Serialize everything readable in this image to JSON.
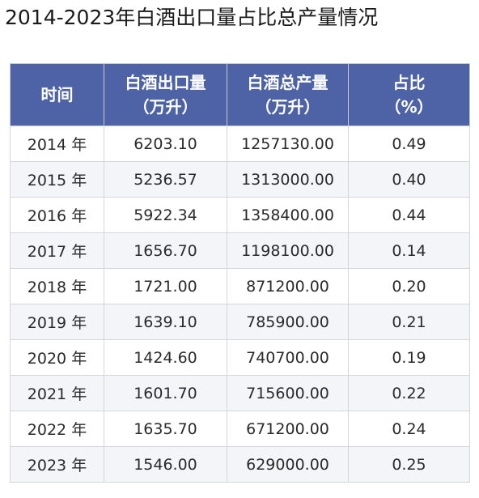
{
  "title": "2014-2023年白酒出口量占比总产量情况",
  "table": {
    "headers": [
      {
        "line1": "时间",
        "line2": ""
      },
      {
        "line1": "白酒出口量",
        "line2": "（万升）"
      },
      {
        "line1": "白酒总产量",
        "line2": "（万升）"
      },
      {
        "line1": "占比",
        "line2": "（%）"
      }
    ],
    "rows": [
      {
        "year": "2014 年",
        "export": "6203.10",
        "production": "1257130.00",
        "ratio": "0.49"
      },
      {
        "year": "2015 年",
        "export": "5236.57",
        "production": "1313000.00",
        "ratio": "0.40"
      },
      {
        "year": "2016 年",
        "export": "5922.34",
        "production": "1358400.00",
        "ratio": "0.44"
      },
      {
        "year": "2017 年",
        "export": "1656.70",
        "production": "1198100.00",
        "ratio": "0.14"
      },
      {
        "year": "2018 年",
        "export": "1721.00",
        "production": "871200.00",
        "ratio": "0.20"
      },
      {
        "year": "2019 年",
        "export": "1639.10",
        "production": "785900.00",
        "ratio": "0.21"
      },
      {
        "year": "2020 年",
        "export": "1424.60",
        "production": "740700.00",
        "ratio": "0.19"
      },
      {
        "year": "2021 年",
        "export": "1601.70",
        "production": "715600.00",
        "ratio": "0.22"
      },
      {
        "year": "2022 年",
        "export": "1635.70",
        "production": "671200.00",
        "ratio": "0.24"
      },
      {
        "year": "2023 年",
        "export": "1546.00",
        "production": "629000.00",
        "ratio": "0.25"
      }
    ]
  },
  "colors": {
    "header_background": "#4d63a6",
    "header_text": "#ffffff"
  }
}
